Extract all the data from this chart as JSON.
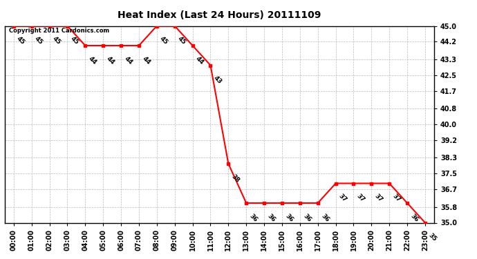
{
  "title": "Heat Index (Last 24 Hours) 20111109",
  "copyright": "Copyright 2011 Cardonics.com",
  "x_labels": [
    "00:00",
    "01:00",
    "02:00",
    "03:00",
    "04:00",
    "05:00",
    "06:00",
    "07:00",
    "08:00",
    "09:00",
    "10:00",
    "11:00",
    "12:00",
    "13:00",
    "14:00",
    "15:00",
    "16:00",
    "17:00",
    "18:00",
    "19:00",
    "20:00",
    "21:00",
    "22:00",
    "23:00"
  ],
  "hours": [
    0,
    1,
    2,
    3,
    4,
    5,
    6,
    7,
    8,
    9,
    10,
    11,
    12,
    13,
    14,
    15,
    16,
    17,
    18,
    19,
    20,
    21,
    22,
    23
  ],
  "values": [
    45,
    45,
    45,
    45,
    44,
    44,
    44,
    44,
    45,
    45,
    44,
    43,
    38,
    36,
    36,
    36,
    36,
    36,
    37,
    37,
    37,
    37,
    36,
    35
  ],
  "ylim_min": 35.0,
  "ylim_max": 45.0,
  "yticks": [
    35.0,
    35.8,
    36.7,
    37.5,
    38.3,
    39.2,
    40.0,
    40.8,
    41.7,
    42.5,
    43.3,
    44.2,
    45.0
  ],
  "line_color": "red",
  "marker": "s",
  "marker_size": 3,
  "marker_color": "red",
  "bg_color": "white",
  "grid_color": "#bbbbbb",
  "label_fontsize": 6.5,
  "title_fontsize": 10,
  "copyright_fontsize": 6,
  "tick_fontsize": 7
}
